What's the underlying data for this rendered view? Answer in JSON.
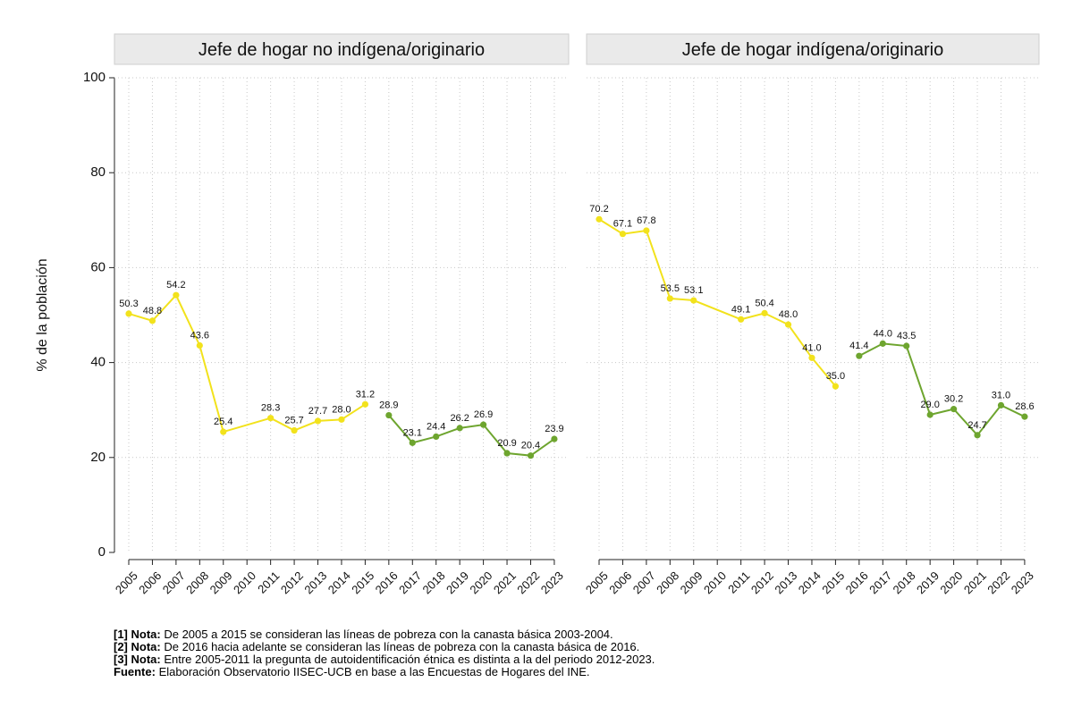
{
  "colors": {
    "period1": "#f2e21c",
    "period2": "#6ea52f"
  },
  "chart_data": {
    "type": "line",
    "ylabel": "% de la población",
    "ylim": [
      0,
      100
    ],
    "yticks": [
      0,
      20,
      40,
      60,
      80,
      100
    ],
    "categories": [
      "2005",
      "2006",
      "2007",
      "2008",
      "2009",
      "2010",
      "2011",
      "2012",
      "2013",
      "2014",
      "2015",
      "2016",
      "2017",
      "2018",
      "2019",
      "2020",
      "2021",
      "2022",
      "2023"
    ],
    "panels": [
      {
        "title": "Jefe de hogar no indígena/originario",
        "series": [
          {
            "name": "Canasta básica 2003-2004",
            "color_key": "period1",
            "x": [
              "2005",
              "2006",
              "2007",
              "2008",
              "2009",
              "2011",
              "2012",
              "2013",
              "2014",
              "2015"
            ],
            "values": [
              50.3,
              48.8,
              54.2,
              43.6,
              25.4,
              28.3,
              25.7,
              27.7,
              28.0,
              31.2
            ],
            "labels": [
              "50.3",
              "48.8",
              "54.2",
              "43.6",
              "25.4",
              "28.3",
              "25.7",
              "27.7",
              "28.0",
              "31.2"
            ]
          },
          {
            "name": "Canasta básica 2016",
            "color_key": "period2",
            "x": [
              "2016",
              "2017",
              "2018",
              "2019",
              "2020",
              "2021",
              "2022",
              "2023"
            ],
            "values": [
              28.9,
              23.1,
              24.4,
              26.2,
              26.9,
              20.9,
              20.4,
              23.9
            ],
            "labels": [
              "28.9",
              "23.1",
              "24.4",
              "26.2",
              "26.9",
              "20.9",
              "20.4",
              "23.9"
            ]
          }
        ]
      },
      {
        "title": "Jefe de hogar indígena/originario",
        "series": [
          {
            "name": "Canasta básica 2003-2004",
            "color_key": "period1",
            "x": [
              "2005",
              "2006",
              "2007",
              "2008",
              "2009",
              "2011",
              "2012",
              "2013",
              "2014",
              "2015"
            ],
            "values": [
              70.2,
              67.1,
              67.8,
              53.5,
              53.1,
              49.1,
              50.4,
              48.0,
              41.0,
              35.0
            ],
            "labels": [
              "70.2",
              "67.1",
              "67.8",
              "53.5",
              "53.1",
              "49.1",
              "50.4",
              "48.0",
              "41.0",
              "35.0"
            ]
          },
          {
            "name": "Canasta básica 2016",
            "color_key": "period2",
            "x": [
              "2016",
              "2017",
              "2018",
              "2019",
              "2020",
              "2021",
              "2022",
              "2023"
            ],
            "values": [
              41.4,
              44.0,
              43.5,
              29.0,
              30.2,
              24.7,
              31.0,
              28.6
            ],
            "labels": [
              "41.4",
              "44.0",
              "43.5",
              "29.0",
              "30.2",
              "24.7",
              "31.0",
              "28.6"
            ]
          }
        ]
      }
    ]
  },
  "notes": [
    {
      "label": "[1] Nota:",
      "text": "De 2005 a 2015 se consideran las líneas de pobreza con la canasta básica 2003-2004."
    },
    {
      "label": "[2] Nota:",
      "text": "De 2016 hacia adelante se consideran las líneas de pobreza con la canasta básica de 2016."
    },
    {
      "label": "[3] Nota:",
      "text": "Entre 2005-2011 la pregunta de autoidentificación étnica es distinta a la del periodo 2012-2023."
    },
    {
      "label": "Fuente:",
      "text": "Elaboración Observatorio IISEC-UCB en base a las Encuestas de Hogares del INE."
    }
  ]
}
